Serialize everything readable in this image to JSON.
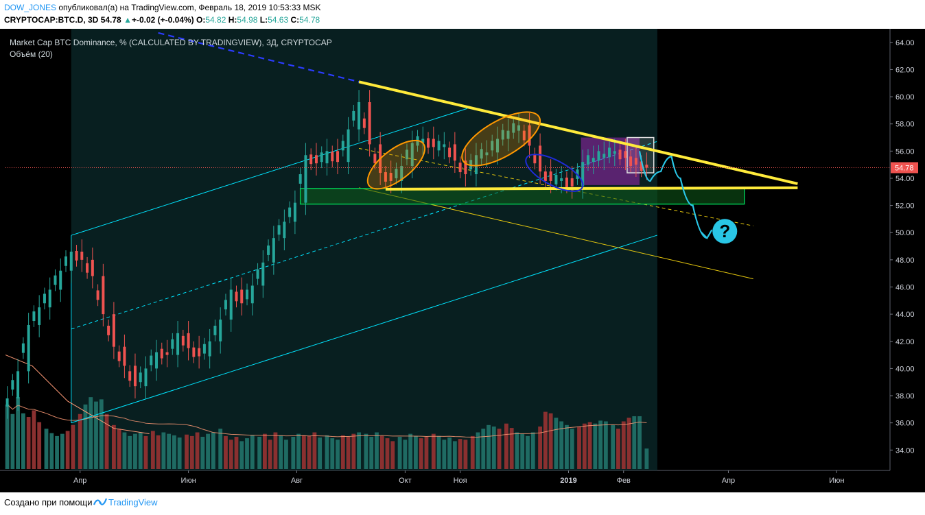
{
  "header": {
    "author": "DOW_JONES",
    "published": " опубликовал(а) на TradingView.com, Февраль 18, 2019 10:53:33 MSK",
    "symbol": "CRYPTOCAP:BTC.D, 3D",
    "last": "54.78",
    "change_arrow": "▲",
    "change": "+-0.02 (+-0.04%)",
    "o_label": "O:",
    "o": "54.82",
    "h_label": "H:",
    "h": "54.98",
    "l_label": "L:",
    "l": "54.63",
    "c_label": "C:",
    "c": "54.78"
  },
  "footer": {
    "created_with": "Создано при помощи",
    "brand": "TradingView"
  },
  "colors": {
    "background": "#000000",
    "up": "#26a69a",
    "down": "#ef5350",
    "channel": "#00e5ff",
    "triangle": "#ffeb3b",
    "support_zone": "#00c853",
    "ellipse_orange": "#ff9800",
    "ellipse_blue": "#1e2bd6",
    "projection": "#29c6e6",
    "price_line": "#ef5350",
    "volume_ma": "#ff9a76"
  },
  "chart_data": {
    "type": "candlestick",
    "title": "Market Cap BTC Dominance, % (CALCULATED BY TRADINGVIEW), 3Д, CRYPTOCAP",
    "subtitle": "Объём (20)",
    "last_price": 54.78,
    "ylim": [
      32.5,
      65.0
    ],
    "y_ticks": [
      "64.00",
      "62.00",
      "60.00",
      "58.00",
      "56.00",
      "54.00",
      "52.00",
      "50.00",
      "48.00",
      "46.00",
      "44.00",
      "42.00",
      "40.00",
      "38.00",
      "36.00",
      "34.00"
    ],
    "x_ticks": [
      {
        "label": "Апр",
        "date": "2018-04-01"
      },
      {
        "label": "Июн",
        "date": "2018-06-01"
      },
      {
        "label": "Авг",
        "date": "2018-08-01"
      },
      {
        "label": "Окт",
        "date": "2018-10-01"
      },
      {
        "label": "Ноя",
        "date": "2018-11-01"
      },
      {
        "label": "2019",
        "date": "2019-01-01"
      },
      {
        "label": "Фев",
        "date": "2019-02-01"
      },
      {
        "label": "Апр",
        "date": "2019-04-01"
      },
      {
        "label": "Июн",
        "date": "2019-06-01"
      }
    ],
    "x_range": [
      "2018-02-18",
      "2019-07-01"
    ],
    "close_points": [
      {
        "date": "2018-02-19",
        "close": 37.8
      },
      {
        "date": "2018-02-25",
        "close": 39.8
      },
      {
        "date": "2018-03-03",
        "close": 43.2
      },
      {
        "date": "2018-03-09",
        "close": 44.5
      },
      {
        "date": "2018-03-15",
        "close": 45.8
      },
      {
        "date": "2018-03-21",
        "close": 47.2
      },
      {
        "date": "2018-03-27",
        "close": 48.6
      },
      {
        "date": "2018-04-02",
        "close": 48.0
      },
      {
        "date": "2018-04-08",
        "close": 46.8
      },
      {
        "date": "2018-04-14",
        "close": 44.0
      },
      {
        "date": "2018-04-20",
        "close": 41.6
      },
      {
        "date": "2018-04-26",
        "close": 40.2
      },
      {
        "date": "2018-05-02",
        "close": 38.7
      },
      {
        "date": "2018-05-08",
        "close": 40.0
      },
      {
        "date": "2018-05-14",
        "close": 41.2
      },
      {
        "date": "2018-05-20",
        "close": 41.0
      },
      {
        "date": "2018-05-26",
        "close": 42.6
      },
      {
        "date": "2018-06-01",
        "close": 41.5
      },
      {
        "date": "2018-06-07",
        "close": 40.9
      },
      {
        "date": "2018-06-13",
        "close": 42.0
      },
      {
        "date": "2018-06-19",
        "close": 43.6
      },
      {
        "date": "2018-06-25",
        "close": 45.8
      },
      {
        "date": "2018-07-01",
        "close": 44.8
      },
      {
        "date": "2018-07-07",
        "close": 46.1
      },
      {
        "date": "2018-07-13",
        "close": 47.8
      },
      {
        "date": "2018-07-19",
        "close": 49.6
      },
      {
        "date": "2018-07-25",
        "close": 50.8
      },
      {
        "date": "2018-07-31",
        "close": 52.2
      },
      {
        "date": "2018-08-06",
        "close": 55.7
      },
      {
        "date": "2018-08-12",
        "close": 55.1
      },
      {
        "date": "2018-08-18",
        "close": 56.0
      },
      {
        "date": "2018-08-24",
        "close": 55.2
      },
      {
        "date": "2018-08-30",
        "close": 57.6
      },
      {
        "date": "2018-09-05",
        "close": 59.6
      },
      {
        "date": "2018-09-11",
        "close": 56.5
      },
      {
        "date": "2018-09-17",
        "close": 54.4
      },
      {
        "date": "2018-09-23",
        "close": 53.8
      },
      {
        "date": "2018-09-29",
        "close": 54.9
      },
      {
        "date": "2018-10-05",
        "close": 56.6
      },
      {
        "date": "2018-10-11",
        "close": 56.9
      },
      {
        "date": "2018-10-17",
        "close": 56.3
      },
      {
        "date": "2018-10-23",
        "close": 56.5
      },
      {
        "date": "2018-10-29",
        "close": 55.3
      },
      {
        "date": "2018-11-04",
        "close": 54.3
      },
      {
        "date": "2018-11-10",
        "close": 55.7
      },
      {
        "date": "2018-11-16",
        "close": 55.9
      },
      {
        "date": "2018-11-22",
        "close": 56.9
      },
      {
        "date": "2018-11-28",
        "close": 57.5
      },
      {
        "date": "2018-12-04",
        "close": 57.9
      },
      {
        "date": "2018-12-10",
        "close": 56.4
      },
      {
        "date": "2018-12-16",
        "close": 54.5
      },
      {
        "date": "2018-12-22",
        "close": 53.8
      },
      {
        "date": "2018-12-28",
        "close": 54.0
      },
      {
        "date": "2019-01-03",
        "close": 53.4
      },
      {
        "date": "2019-01-09",
        "close": 55.2
      },
      {
        "date": "2019-01-15",
        "close": 55.5
      },
      {
        "date": "2019-01-21",
        "close": 55.8
      },
      {
        "date": "2019-01-27",
        "close": 56.0
      },
      {
        "date": "2019-02-02",
        "close": 55.5
      },
      {
        "date": "2019-02-08",
        "close": 55.0
      },
      {
        "date": "2019-02-14",
        "close": 54.78
      }
    ],
    "volume_series": {
      "name": "Объём (20)",
      "values": [
        0.88,
        0.75,
        0.98,
        0.76,
        0.71,
        0.8,
        0.64,
        0.55,
        0.49,
        0.45,
        0.48,
        0.52,
        0.6,
        0.75,
        0.88,
        0.98,
        0.92,
        0.95,
        0.75,
        0.6,
        0.55,
        0.5,
        0.45,
        0.48,
        0.5,
        0.45,
        0.52,
        0.46,
        0.5,
        0.48,
        0.46,
        0.43,
        0.47,
        0.45,
        0.5,
        0.44,
        0.48,
        0.5,
        0.55,
        0.45,
        0.4,
        0.44,
        0.38,
        0.42,
        0.46,
        0.44,
        0.48,
        0.4,
        0.5,
        0.46,
        0.4,
        0.44,
        0.48,
        0.46,
        0.45,
        0.5,
        0.43,
        0.46,
        0.42,
        0.4,
        0.46,
        0.44,
        0.48,
        0.5,
        0.48,
        0.44,
        0.5,
        0.45,
        0.42,
        0.38,
        0.44,
        0.4,
        0.48,
        0.45,
        0.42,
        0.44,
        0.48,
        0.45,
        0.4,
        0.43,
        0.38,
        0.41,
        0.4,
        0.45,
        0.5,
        0.55,
        0.6,
        0.58,
        0.55,
        0.62,
        0.56,
        0.5,
        0.48,
        0.45,
        0.5,
        0.58,
        0.78,
        0.76,
        0.7,
        0.65,
        0.6,
        0.55,
        0.58,
        0.62,
        0.64,
        0.62,
        0.66,
        0.65,
        0.6,
        0.55,
        0.65,
        0.7,
        0.72,
        0.72,
        0.28
      ]
    },
    "grid": false,
    "volume_visible": true
  }
}
